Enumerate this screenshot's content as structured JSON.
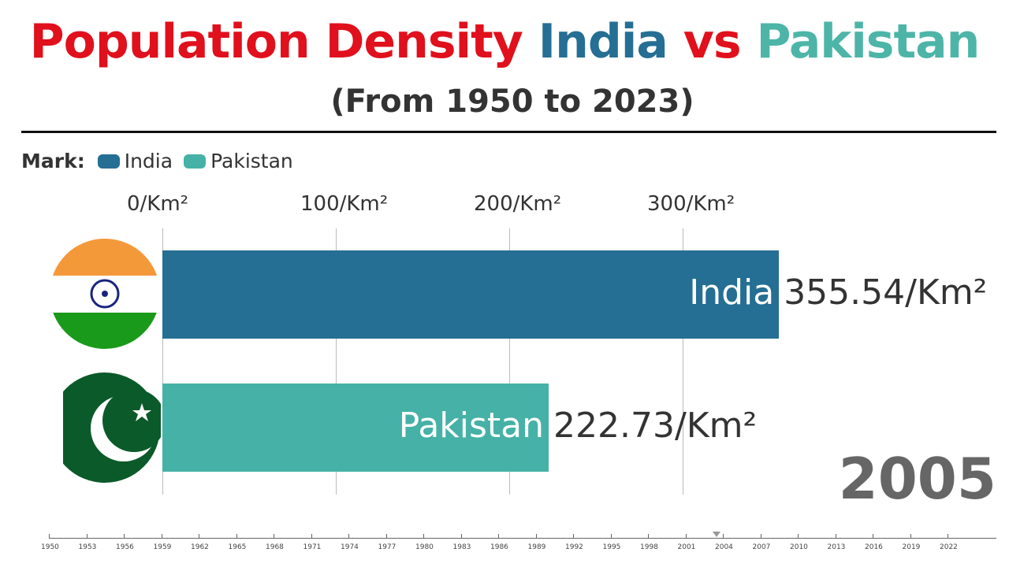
{
  "title": {
    "part1": "Population Density",
    "part2": "India",
    "part3": "vs",
    "part4": "Pakistan",
    "colors": [
      "#e0101c",
      "#256e94",
      "#e0101c",
      "#4db5a8"
    ]
  },
  "subtitle": "(From 1950 to 2023)",
  "chart_data": {
    "type": "bar",
    "orientation": "horizontal",
    "legend_title": "Mark:",
    "categories": [
      "India",
      "Pakistan"
    ],
    "values": [
      355.54,
      222.73
    ],
    "value_labels": [
      "355.54/Km²",
      "222.73/Km²"
    ],
    "colors": [
      "#256e94",
      "#46b1a6"
    ],
    "xlim": [
      0,
      360
    ],
    "x_ticks": [
      0,
      100,
      200,
      300
    ],
    "x_tick_labels": [
      "0/Km²",
      "100/Km²",
      "200/Km²",
      "300/Km²"
    ],
    "grid": true,
    "legend_position": "top-left",
    "year": "2005"
  },
  "timeline": {
    "labels": [
      "1950",
      "1953",
      "1956",
      "1959",
      "1962",
      "1965",
      "1968",
      "1971",
      "1974",
      "1977",
      "1980",
      "1983",
      "1986",
      "1989",
      "1992",
      "1995",
      "1998",
      "2001",
      "2004",
      "2007",
      "2010",
      "2013",
      "2016",
      "2019",
      "2022"
    ],
    "current": 2003.5
  }
}
